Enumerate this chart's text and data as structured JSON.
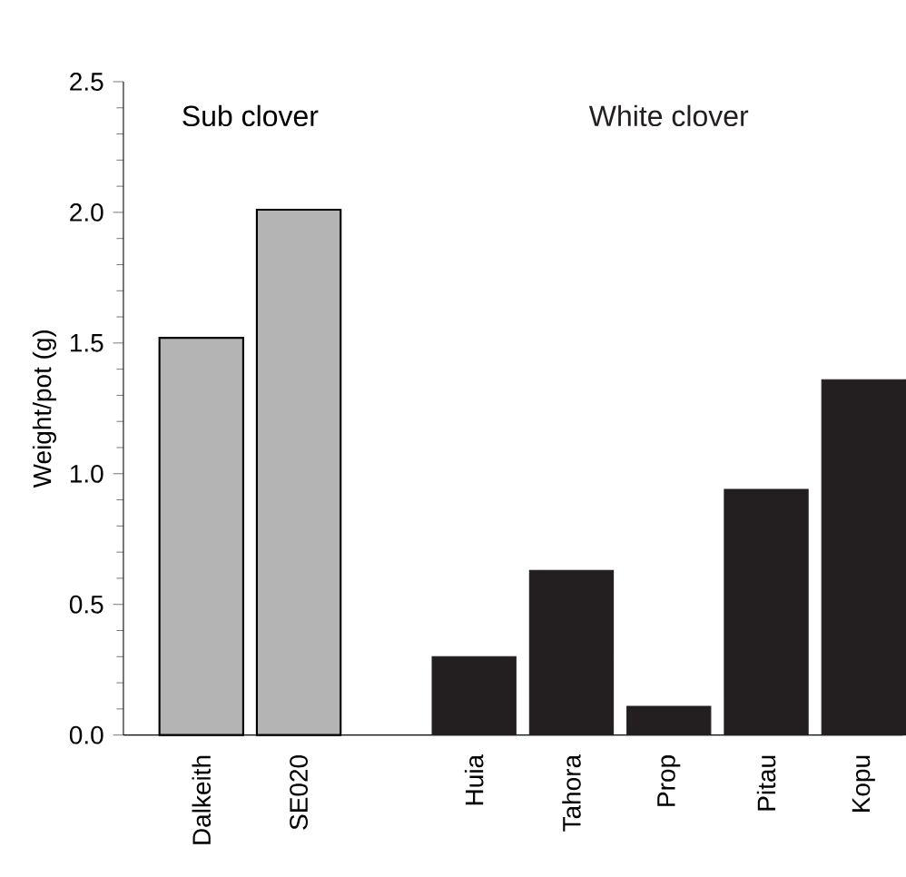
{
  "chart_data": {
    "type": "bar",
    "ylabel": "Weight/pot (g)",
    "categories": [
      "Dalkeith",
      "SE020",
      "Huia",
      "Tahora",
      "Prop",
      "Pitau",
      "Kopu"
    ],
    "series": [
      {
        "name": "Sub clover",
        "color": "#b4b4b4",
        "values": [
          1.52,
          2.01,
          null,
          null,
          null,
          null,
          null
        ]
      },
      {
        "name": "White clover",
        "color": "#231f20",
        "values": [
          null,
          null,
          0.3,
          0.63,
          0.11,
          0.94,
          1.36
        ]
      }
    ],
    "ylim": [
      0,
      2.5
    ],
    "yticks": [
      {
        "value": 0,
        "label": "0.0"
      },
      0.5,
      {
        "value": 1,
        "label": "1.0"
      },
      1.5,
      {
        "value": 2,
        "label": "2.0"
      },
      2.5
    ],
    "grid": false,
    "legend": false
  }
}
